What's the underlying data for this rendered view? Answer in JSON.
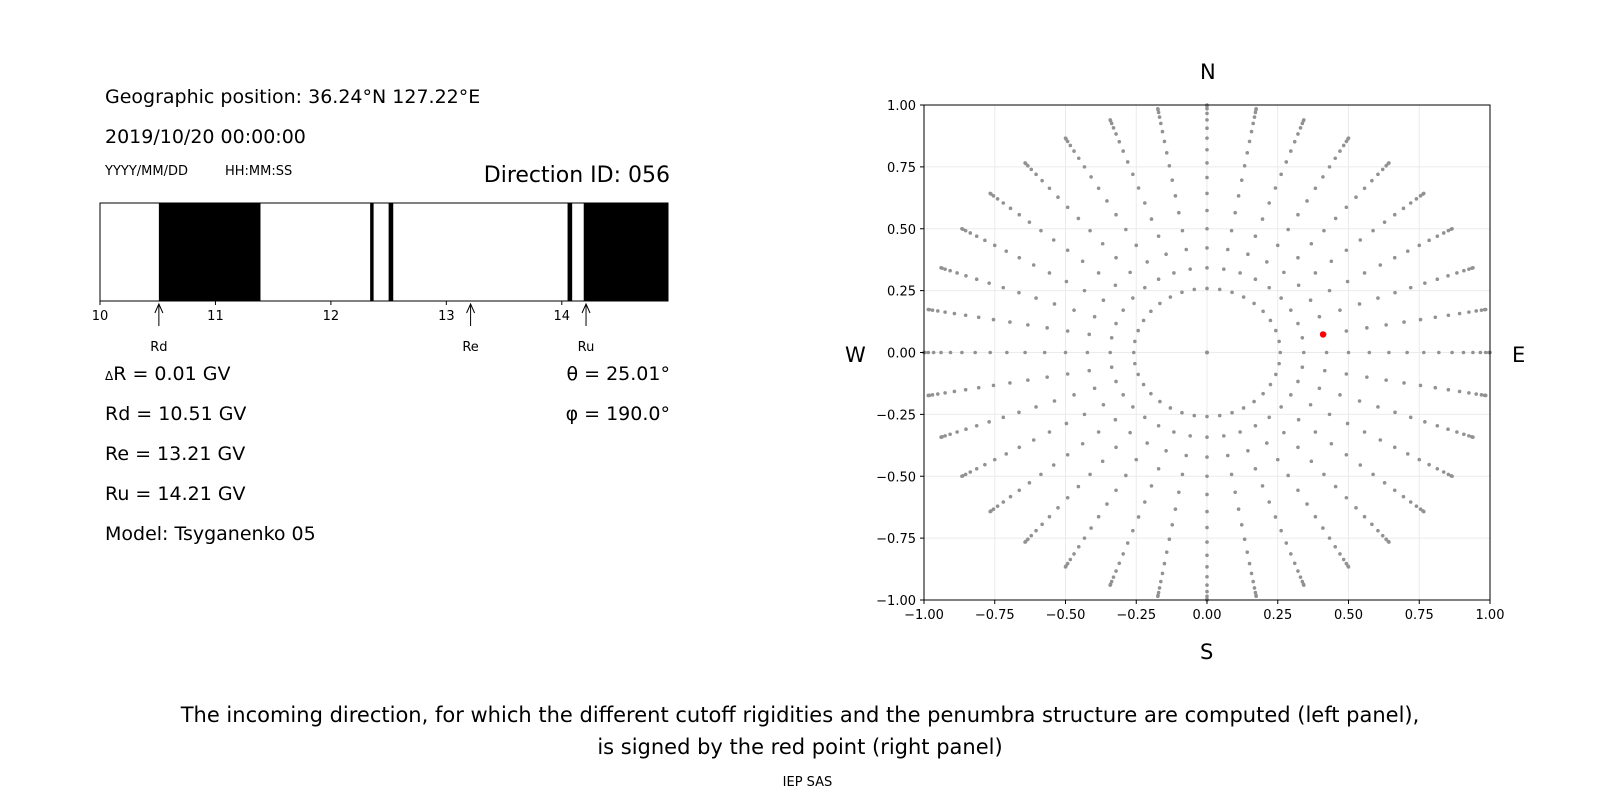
{
  "header": {
    "geo_position": "Geographic position: 36.24°N 127.22°E",
    "datetime": "2019/10/20 00:00:00",
    "date_format": "YYYY/MM/DD",
    "time_format": "HH:MM:SS",
    "direction_id": "Direction ID: 056"
  },
  "stats": {
    "delta_r": "R = 0.01 GV",
    "delta_symbol": "Δ",
    "rd": "Rd = 10.51 GV",
    "re": "Re = 13.21 GV",
    "ru": "Ru = 14.21 GV",
    "model": "Model: Tsyganenko 05",
    "theta": "θ = 25.01°",
    "phi": "φ = 190.0°"
  },
  "compass": {
    "north": "N",
    "south": "S",
    "west": "W",
    "east": "E"
  },
  "caption": {
    "line1": "The incoming direction, for which the different cutoff rigidities and the penumbra structure are computed (left panel),",
    "line2": "is signed by the red point (right panel)",
    "credit": "IEP SAS"
  },
  "chart_data": [
    {
      "type": "bar",
      "name": "penumbra",
      "xlim": [
        10,
        14.92
      ],
      "xticks": [
        "10",
        "11",
        "12",
        "13",
        "14"
      ],
      "forbidden_bands": [
        [
          10.51,
          11.39
        ],
        [
          12.34,
          12.37
        ],
        [
          12.5,
          12.54
        ],
        [
          14.05,
          14.09
        ],
        [
          14.19,
          14.92
        ]
      ],
      "markers": [
        {
          "label": "Rd",
          "x": 10.51
        },
        {
          "label": "Re",
          "x": 13.21
        },
        {
          "label": "Ru",
          "x": 14.21
        }
      ]
    },
    {
      "type": "scatter",
      "xlim": [
        -1,
        1
      ],
      "ylim": [
        -1,
        1
      ],
      "xticks": [
        "−1.00",
        "−0.75",
        "−0.50",
        "−0.25",
        "0.00",
        "0.25",
        "0.50",
        "0.75",
        "1.00"
      ],
      "yticks": [
        "−1.00",
        "−0.75",
        "−0.50",
        "−0.25",
        "0.00",
        "0.25",
        "0.50",
        "0.75",
        "1.00"
      ],
      "grid": true,
      "colors": {
        "grid_points": "#929292",
        "highlight": "#ff0000"
      },
      "grid_points": "directions at zenith angles 15°–90° in 5° steps and azimuths every 10°, plus the zenith (0, 0)",
      "zenith_angles_deg": [
        15,
        20,
        25,
        30,
        35,
        40,
        45,
        50,
        55,
        60,
        65,
        70,
        75,
        80,
        85,
        90
      ],
      "azimuth_step_deg": 10,
      "highlight_point": {
        "x": 0.41,
        "y": 0.073
      }
    }
  ]
}
